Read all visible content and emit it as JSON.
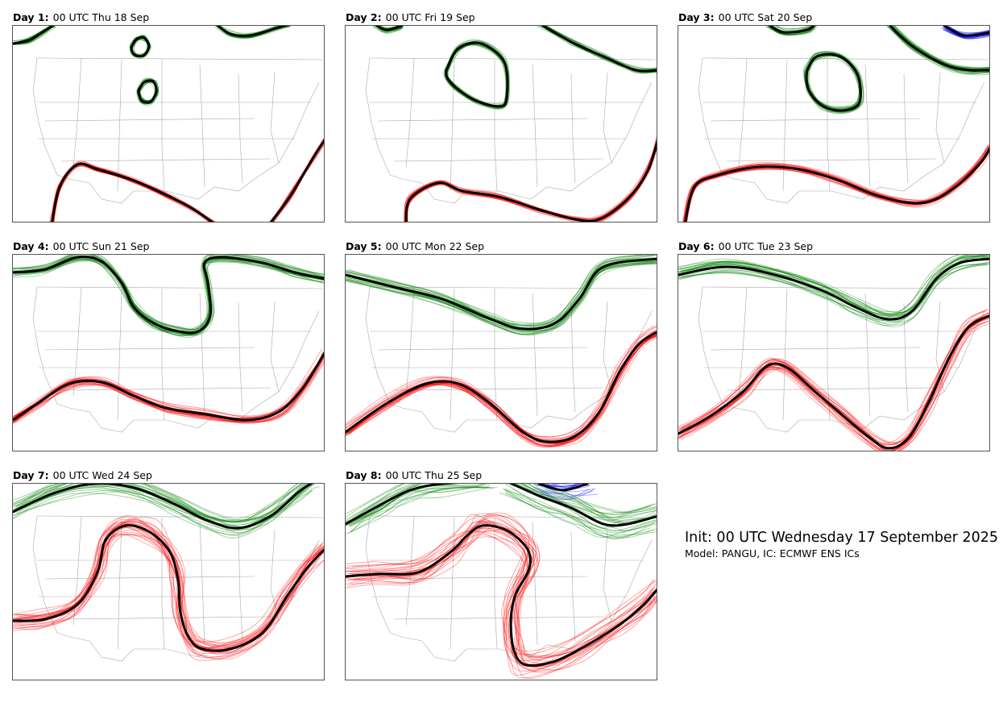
{
  "colors": {
    "red": "#ff0000",
    "green": "#008000",
    "blue": "#0000ff",
    "mean": "#000000",
    "border": "#a9a9a9"
  },
  "info": {
    "init": "Init: 00 UTC Wednesday 17 September 2025",
    "model": "Model: PANGU, IC: ECMWF ENS ICs"
  },
  "panels": [
    {
      "day": "Day 1",
      "time": "00 UTC Thu 18 Sep",
      "spread": 4,
      "noise": 4,
      "contours": [
        {
          "color": "green",
          "mean": [
            [
              0,
              22
            ],
            [
              20,
              18
            ],
            [
              40,
              6
            ],
            [
              52,
              -2
            ]
          ]
        },
        {
          "color": "green",
          "mean": [
            [
              252,
              -2
            ],
            [
              270,
              10
            ],
            [
              295,
              12
            ],
            [
              330,
              2
            ],
            [
              345,
              -2
            ]
          ]
        },
        {
          "color": "green",
          "closed": true,
          "mean": [
            [
              147,
              27
            ],
            [
              153,
              17
            ],
            [
              163,
              15
            ],
            [
              169,
              26
            ],
            [
              162,
              37
            ],
            [
              151,
              36
            ]
          ]
        },
        {
          "color": "green",
          "closed": true,
          "mean": [
            [
              156,
              80
            ],
            [
              163,
              70
            ],
            [
              174,
              69
            ],
            [
              178,
              81
            ],
            [
              171,
              94
            ],
            [
              160,
              93
            ]
          ]
        },
        {
          "color": "red",
          "mean": [
            [
              48,
              247
            ],
            [
              58,
              200
            ],
            [
              80,
              172
            ],
            [
              105,
              178
            ],
            [
              150,
              192
            ],
            [
              195,
              212
            ],
            [
              225,
              228
            ],
            [
              252,
              247
            ]
          ]
        },
        {
          "color": "red",
          "mean": [
            [
              318,
              247
            ],
            [
              345,
              210
            ],
            [
              372,
              165
            ],
            [
              388,
              140
            ]
          ]
        }
      ]
    },
    {
      "day": "Day 2",
      "time": "00 UTC Fri 19 Sep",
      "spread": 5,
      "noise": 4,
      "contours": [
        {
          "color": "green",
          "mean": [
            [
              35,
              -3
            ],
            [
              50,
              5
            ],
            [
              70,
              0
            ]
          ]
        },
        {
          "color": "green",
          "mean": [
            [
              240,
              -3
            ],
            [
              280,
              20
            ],
            [
              320,
              38
            ],
            [
              360,
              55
            ],
            [
              388,
              55
            ]
          ]
        },
        {
          "color": "green",
          "closed": true,
          "mean": [
            [
              125,
              55
            ],
            [
              140,
              28
            ],
            [
              168,
              22
            ],
            [
              197,
              45
            ],
            [
              200,
              90
            ],
            [
              190,
              100
            ],
            [
              160,
              92
            ],
            [
              132,
              72
            ]
          ]
        },
        {
          "color": "red",
          "mean": [
            [
              75,
              247
            ],
            [
              80,
              215
            ],
            [
              115,
              195
            ],
            [
              145,
              205
            ],
            [
              190,
              212
            ],
            [
              240,
              228
            ],
            [
              285,
              240
            ],
            [
              315,
              240
            ],
            [
              350,
              215
            ],
            [
              375,
              180
            ],
            [
              388,
              140
            ]
          ]
        }
      ]
    },
    {
      "day": "Day 3",
      "time": "00 UTC Sat 20 Sep",
      "spread": 7,
      "noise": 4,
      "contours": [
        {
          "color": "green",
          "mean": [
            [
              110,
              -3
            ],
            [
              130,
              8
            ],
            [
              160,
              5
            ],
            [
              170,
              -3
            ]
          ]
        },
        {
          "color": "green",
          "mean": [
            [
              260,
              -3
            ],
            [
              290,
              25
            ],
            [
              330,
              48
            ],
            [
              360,
              55
            ],
            [
              388,
              55
            ]
          ]
        },
        {
          "color": "green",
          "closed": true,
          "mean": [
            [
              160,
              55
            ],
            [
              172,
              38
            ],
            [
              200,
              38
            ],
            [
              222,
              60
            ],
            [
              225,
              95
            ],
            [
              205,
              105
            ],
            [
              180,
              100
            ],
            [
              162,
              80
            ]
          ]
        },
        {
          "color": "blue",
          "mean": [
            [
              330,
              0
            ],
            [
              355,
              12
            ],
            [
              388,
              8
            ]
          ]
        },
        {
          "color": "red",
          "mean": [
            [
              8,
              247
            ],
            [
              20,
              200
            ],
            [
              50,
              185
            ],
            [
              100,
              175
            ],
            [
              150,
              178
            ],
            [
              200,
              192
            ],
            [
              245,
              210
            ],
            [
              290,
              220
            ],
            [
              320,
              215
            ],
            [
              350,
              195
            ],
            [
              375,
              170
            ],
            [
              388,
              150
            ]
          ]
        }
      ]
    },
    {
      "day": "Day 4",
      "time": "00 UTC Sun 21 Sep",
      "spread": 9,
      "noise": 5,
      "contours": [
        {
          "color": "green",
          "mean": [
            [
              0,
              22
            ],
            [
              40,
              18
            ],
            [
              80,
              3
            ],
            [
              110,
              8
            ],
            [
              135,
              35
            ],
            [
              150,
              65
            ],
            [
              175,
              85
            ],
            [
              205,
              95
            ],
            [
              230,
              95
            ],
            [
              245,
              75
            ],
            [
              242,
              35
            ],
            [
              238,
              10
            ],
            [
              260,
              3
            ],
            [
              310,
              10
            ],
            [
              350,
              22
            ],
            [
              388,
              30
            ]
          ]
        },
        {
          "color": "red",
          "mean": [
            [
              0,
              205
            ],
            [
              30,
              185
            ],
            [
              70,
              160
            ],
            [
              110,
              158
            ],
            [
              150,
              175
            ],
            [
              190,
              190
            ],
            [
              240,
              198
            ],
            [
              290,
              205
            ],
            [
              330,
              195
            ],
            [
              360,
              165
            ],
            [
              388,
              120
            ]
          ]
        }
      ]
    },
    {
      "day": "Day 5",
      "time": "00 UTC Mon 22 Sep",
      "spread": 12,
      "noise": 5,
      "contours": [
        {
          "color": "green",
          "mean": [
            [
              0,
              25
            ],
            [
              60,
              40
            ],
            [
              120,
              55
            ],
            [
              180,
              80
            ],
            [
              220,
              92
            ],
            [
              260,
              85
            ],
            [
              290,
              55
            ],
            [
              320,
              15
            ],
            [
              388,
              5
            ]
          ]
        },
        {
          "color": "red",
          "mean": [
            [
              0,
              220
            ],
            [
              50,
              185
            ],
            [
              100,
              160
            ],
            [
              140,
              160
            ],
            [
              180,
              185
            ],
            [
              220,
              220
            ],
            [
              250,
              232
            ],
            [
              285,
              225
            ],
            [
              315,
              195
            ],
            [
              340,
              145
            ],
            [
              365,
              110
            ],
            [
              388,
              95
            ]
          ]
        }
      ]
    },
    {
      "day": "Day 6",
      "time": "00 UTC Tue 23 Sep",
      "spread": 15,
      "noise": 6,
      "contours": [
        {
          "color": "green",
          "mean": [
            [
              0,
              25
            ],
            [
              60,
              15
            ],
            [
              120,
              25
            ],
            [
              180,
              45
            ],
            [
              220,
              65
            ],
            [
              260,
              80
            ],
            [
              290,
              70
            ],
            [
              320,
              30
            ],
            [
              350,
              10
            ],
            [
              388,
              5
            ]
          ]
        },
        {
          "color": "red",
          "mean": [
            [
              0,
              222
            ],
            [
              40,
              200
            ],
            [
              80,
              170
            ],
            [
              110,
              138
            ],
            [
              135,
              140
            ],
            [
              170,
              170
            ],
            [
              205,
              200
            ],
            [
              235,
              225
            ],
            [
              260,
              240
            ],
            [
              285,
              228
            ],
            [
              310,
              185
            ],
            [
              335,
              130
            ],
            [
              360,
              90
            ],
            [
              388,
              75
            ]
          ]
        }
      ]
    },
    {
      "day": "Day 7",
      "time": "00 UTC Wed 24 Sep",
      "spread": 22,
      "noise": 8,
      "contours": [
        {
          "color": "green",
          "mean": [
            [
              0,
              35
            ],
            [
              50,
              12
            ],
            [
              100,
              0
            ],
            [
              150,
              5
            ],
            [
              200,
              25
            ],
            [
              240,
              45
            ],
            [
              280,
              55
            ],
            [
              320,
              40
            ],
            [
              355,
              10
            ],
            [
              375,
              -3
            ]
          ]
        },
        {
          "color": "red",
          "mean": [
            [
              0,
              170
            ],
            [
              40,
              168
            ],
            [
              80,
              150
            ],
            [
              105,
              110
            ],
            [
              115,
              70
            ],
            [
              140,
              52
            ],
            [
              170,
              60
            ],
            [
              195,
              85
            ],
            [
              205,
              120
            ],
            [
              208,
              160
            ],
            [
              218,
              190
            ],
            [
              235,
              205
            ],
            [
              270,
              205
            ],
            [
              310,
              185
            ],
            [
              340,
              140
            ],
            [
              365,
              105
            ],
            [
              388,
              80
            ]
          ]
        }
      ]
    },
    {
      "day": "Day 8",
      "time": "00 UTC Thu 25 Sep",
      "spread": 30,
      "noise": 10,
      "contours": [
        {
          "color": "green",
          "mean": [
            [
              0,
              50
            ],
            [
              40,
              28
            ],
            [
              80,
              8
            ],
            [
              120,
              0
            ],
            [
              175,
              -3
            ]
          ]
        },
        {
          "color": "green",
          "mean": [
            [
              200,
              -3
            ],
            [
              240,
              15
            ],
            [
              280,
              30
            ],
            [
              320,
              50
            ],
            [
              350,
              50
            ],
            [
              388,
              40
            ]
          ]
        },
        {
          "color": "red",
          "mean": [
            [
              0,
              115
            ],
            [
              40,
              112
            ],
            [
              90,
              110
            ],
            [
              130,
              85
            ],
            [
              150,
              65
            ],
            [
              170,
              52
            ],
            [
              200,
              58
            ],
            [
              225,
              80
            ],
            [
              228,
              105
            ],
            [
              210,
              140
            ],
            [
              205,
              175
            ],
            [
              210,
              210
            ],
            [
              225,
              225
            ],
            [
              260,
              220
            ],
            [
              300,
              200
            ],
            [
              340,
              175
            ],
            [
              370,
              150
            ],
            [
              388,
              130
            ]
          ]
        },
        {
          "color": "blue",
          "mean": [
            [
              240,
              0
            ],
            [
              270,
              8
            ],
            [
              300,
              0
            ]
          ]
        }
      ]
    }
  ]
}
